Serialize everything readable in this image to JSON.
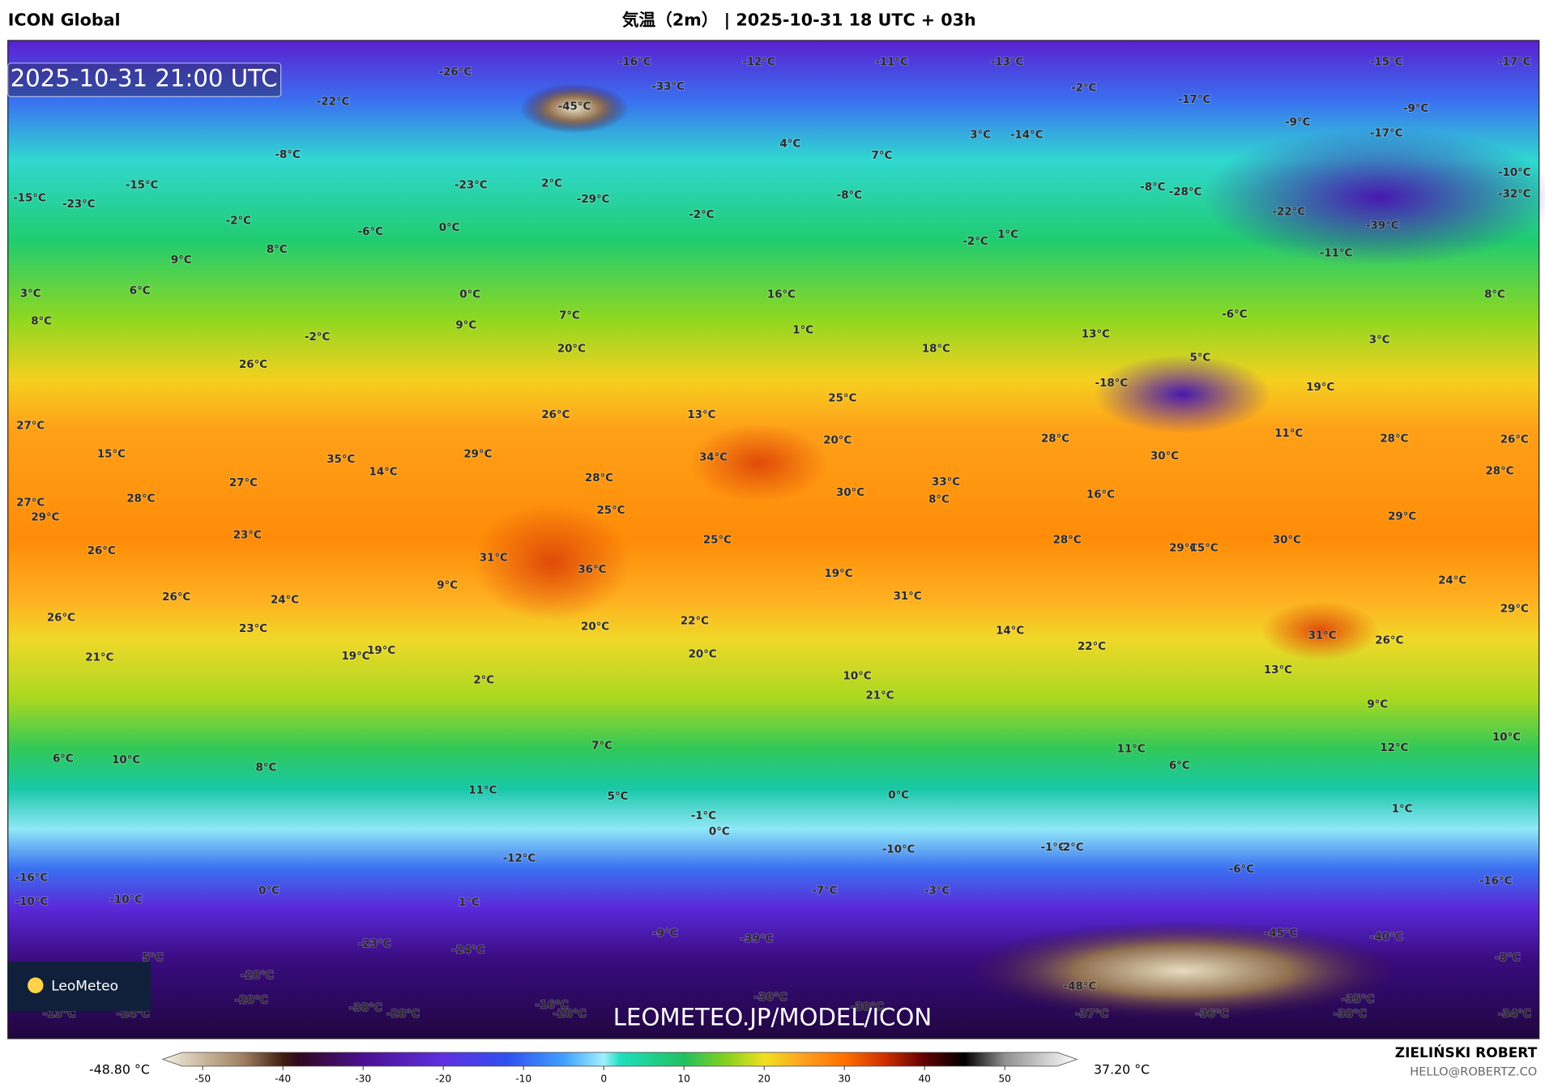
{
  "header": {
    "model": "ICON Global",
    "title": "気温（2m） | 2025-10-31 18 UTC + 03h"
  },
  "map": {
    "timestamp": "2025-10-31 21:00 UTC",
    "watermark": "LEOMETEO.JP/MODEL/ICON",
    "logo": "LeoMeteo",
    "temperature_labels": [
      "-26°C",
      "-16°C",
      "-12°C",
      "-11°C",
      "-13°C",
      "-15°C",
      "-17°C",
      "-45°C",
      "-33°C",
      "-22°C",
      "-2°C",
      "-17°C",
      "-9°C",
      "-9°C",
      "3°C",
      "-14°C",
      "4°C",
      "7°C",
      "-17°C",
      "-8°C",
      "-15°C",
      "-23°C",
      "2°C",
      "-29°C",
      "-8°C",
      "-8°C",
      "-28°C",
      "-10°C",
      "-32°C",
      "-15°C",
      "-23°C",
      "-2°C",
      "-6°C",
      "0°C",
      "-2°C",
      "-22°C",
      "-39°C",
      "-2°C",
      "1°C",
      "9°C",
      "8°C",
      "-11°C",
      "3°C",
      "6°C",
      "0°C",
      "16°C",
      "8°C",
      "8°C",
      "7°C",
      "9°C",
      "1°C",
      "-6°C",
      "-2°C",
      "20°C",
      "13°C",
      "18°C",
      "3°C",
      "5°C",
      "26°C",
      "-18°C",
      "19°C",
      "25°C",
      "27°C",
      "26°C",
      "13°C",
      "20°C",
      "28°C",
      "11°C",
      "28°C",
      "26°C",
      "15°C",
      "35°C",
      "29°C",
      "34°C",
      "30°C",
      "28°C",
      "27°C",
      "14°C",
      "28°C",
      "33°C",
      "27°C",
      "29°C",
      "28°C",
      "25°C",
      "30°C",
      "8°C",
      "16°C",
      "29°C",
      "23°C",
      "25°C",
      "28°C",
      "29°C",
      "15°C",
      "30°C",
      "26°C",
      "31°C",
      "36°C",
      "19°C",
      "24°C",
      "9°C",
      "26°C",
      "24°C",
      "31°C",
      "29°C",
      "26°C",
      "22°C",
      "20°C",
      "23°C",
      "14°C",
      "31°C",
      "26°C",
      "22°C",
      "21°C",
      "19°C",
      "19°C",
      "20°C",
      "13°C",
      "10°C",
      "21°C",
      "9°C",
      "2°C",
      "10°C",
      "6°C",
      "10°C",
      "8°C",
      "7°C",
      "11°C",
      "6°C",
      "12°C",
      "11°C",
      "5°C",
      "0°C",
      "-1°C",
      "0°C",
      "1°C",
      "-10°C",
      "-1°C",
      "-2°C",
      "-12°C",
      "-6°C",
      "-16°C",
      "-10°C",
      "-10°C",
      "0°C",
      "-7°C",
      "-3°C",
      "-16°C",
      "1°C",
      "-9°C",
      "-39°C",
      "-45°C",
      "-40°C",
      "-23°C",
      "-24°C",
      "5°C",
      "-28°C",
      "-8°C",
      "-48°C",
      "-20°C",
      "-30°C",
      "-16°C",
      "-38°C",
      "-28°C",
      "-28°C",
      "-30°C",
      "-37°C",
      "-36°C",
      "-35°C",
      "-38°C",
      "-34°C",
      "-24°C",
      "-13°C"
    ]
  },
  "colorbar": {
    "min_label": "-48.80 °C",
    "max_label": "37.20 °C",
    "lim": [
      -55,
      59
    ],
    "ticks": [
      -50,
      -40,
      -30,
      -20,
      -10,
      0,
      10,
      20,
      30,
      40,
      50
    ],
    "stops": [
      {
        "value": -55,
        "color": "#f5f0e0"
      },
      {
        "value": -45,
        "color": "#a08060"
      },
      {
        "value": -40,
        "color": "#402010"
      },
      {
        "value": -38,
        "color": "#300820"
      },
      {
        "value": -30,
        "color": "#4a1090"
      },
      {
        "value": -20,
        "color": "#6030e0"
      },
      {
        "value": -12,
        "color": "#3050f0"
      },
      {
        "value": -5,
        "color": "#40a0ff"
      },
      {
        "value": 0,
        "color": "#a0f0ff"
      },
      {
        "value": 2,
        "color": "#20e0c0"
      },
      {
        "value": 10,
        "color": "#20c060"
      },
      {
        "value": 15,
        "color": "#80d020"
      },
      {
        "value": 20,
        "color": "#f0e020"
      },
      {
        "value": 25,
        "color": "#ffa020"
      },
      {
        "value": 30,
        "color": "#ff7000"
      },
      {
        "value": 35,
        "color": "#d03000"
      },
      {
        "value": 40,
        "color": "#600000"
      },
      {
        "value": 45,
        "color": "#000000"
      },
      {
        "value": 50,
        "color": "#909090"
      },
      {
        "value": 59,
        "color": "#ffffff"
      }
    ]
  },
  "footer": {
    "author": "ZIELIŃSKI ROBERT",
    "email": "HELLO@ROBERTZ.CO"
  }
}
